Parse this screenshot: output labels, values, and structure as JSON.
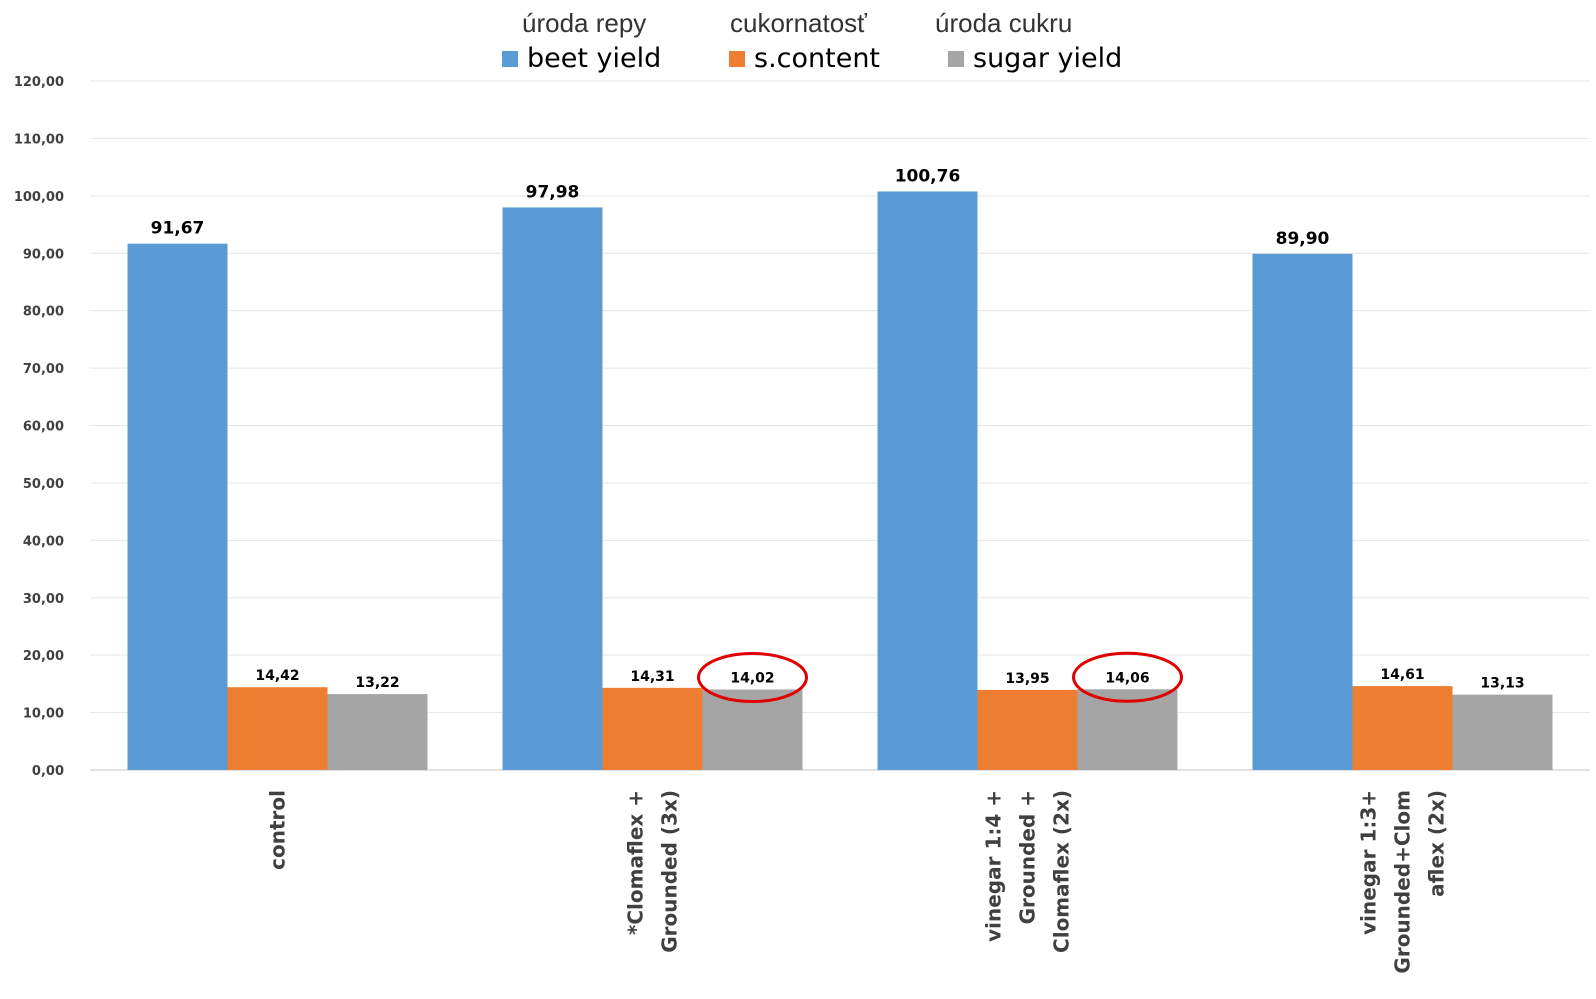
{
  "chart_data": {
    "type": "bar",
    "categories": [
      [
        "control"
      ],
      [
        "*Clomaflex +",
        "Grounded (3x)"
      ],
      [
        "vinegar 1:4 +",
        "Grounded +",
        "Clomaflex (2x)"
      ],
      [
        "vinegar 1:3+",
        "Grounded+Clom",
        "aflex (2x)"
      ]
    ],
    "series": [
      {
        "name": "beet yield",
        "name_sk": "úroda repy",
        "color": "#5b9bd5",
        "values": [
          91.67,
          97.98,
          100.76,
          89.9
        ],
        "labels": [
          "91,67",
          "97,98",
          "100,76",
          "89,90"
        ]
      },
      {
        "name": "s.content",
        "name_sk": "cukornatosť",
        "color": "#ed7d31",
        "values": [
          14.42,
          14.31,
          13.95,
          14.61
        ],
        "labels": [
          "14,42",
          "14,31",
          "13,95",
          "14,61"
        ]
      },
      {
        "name": "sugar yield",
        "name_sk": "úroda cukru",
        "color": "#a5a5a5",
        "values": [
          13.22,
          14.02,
          14.06,
          13.13
        ],
        "labels": [
          "13,22",
          "14,02",
          "14,06",
          "13,13"
        ]
      }
    ],
    "ylim": [
      0,
      120
    ],
    "yticks": [
      "0,00",
      "10,00",
      "20,00",
      "30,00",
      "40,00",
      "50,00",
      "60,00",
      "70,00",
      "80,00",
      "90,00",
      "100,00",
      "110,00",
      "120,00"
    ],
    "grid": true,
    "legend_position": "top-center",
    "highlighted": [
      {
        "series": 2,
        "category": 1,
        "color": "#e00000"
      },
      {
        "series": 2,
        "category": 2,
        "color": "#e00000"
      }
    ]
  }
}
